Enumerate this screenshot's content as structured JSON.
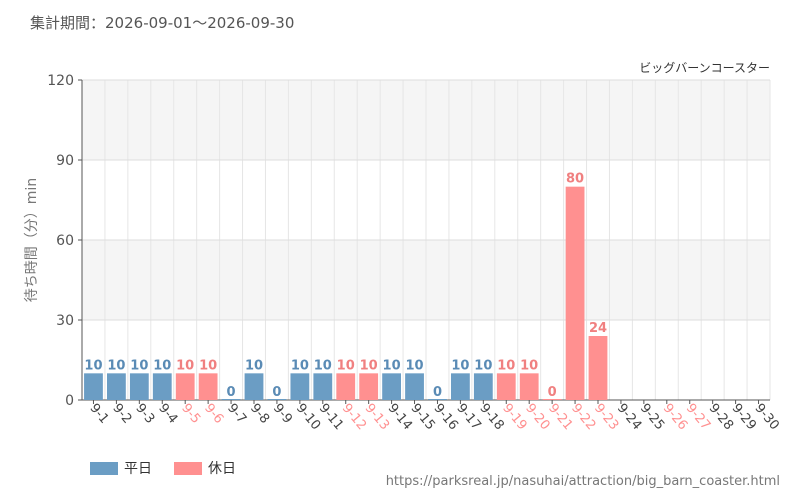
{
  "header": {
    "period_label": "集計期間：",
    "period_range": "2026-09-01～2026-09-30"
  },
  "footer": {
    "source_url": "https://parksreal.jp/nasuhai/attraction/big_barn_coaster.html"
  },
  "colors": {
    "weekday": "#6b9dc4",
    "holiday": "#ff9090",
    "weekday_text": "#5a8bb5",
    "holiday_text": "#f08080"
  },
  "chart_data": {
    "type": "bar",
    "subtitle": "ビッグバーンコースター",
    "ylabel": "待ち時間（分）min",
    "ylim": [
      0,
      120
    ],
    "yticks": [
      0,
      30,
      60,
      90,
      120
    ],
    "legend": {
      "position": "bottom-left",
      "entries": [
        {
          "key": "weekday",
          "label": "平日"
        },
        {
          "key": "holiday",
          "label": "休日"
        }
      ]
    },
    "categories": [
      "9-1",
      "9-2",
      "9-3",
      "9-4",
      "9-5",
      "9-6",
      "9-7",
      "9-8",
      "9-9",
      "9-10",
      "9-11",
      "9-12",
      "9-13",
      "9-14",
      "9-15",
      "9-16",
      "9-17",
      "9-18",
      "9-19",
      "9-20",
      "9-21",
      "9-22",
      "9-23",
      "9-24",
      "9-25",
      "9-26",
      "9-27",
      "9-28",
      "9-29",
      "9-30"
    ],
    "values": [
      10,
      10,
      10,
      10,
      10,
      10,
      0,
      10,
      0,
      10,
      10,
      10,
      10,
      10,
      10,
      0,
      10,
      10,
      10,
      10,
      0,
      80,
      24,
      null,
      null,
      null,
      null,
      null,
      null,
      null
    ],
    "day_type": [
      "weekday",
      "weekday",
      "weekday",
      "weekday",
      "holiday",
      "holiday",
      "weekday",
      "weekday",
      "weekday",
      "weekday",
      "weekday",
      "holiday",
      "holiday",
      "weekday",
      "weekday",
      "weekday",
      "weekday",
      "weekday",
      "holiday",
      "holiday",
      "holiday",
      "holiday",
      "holiday",
      "weekday",
      "weekday",
      "holiday",
      "holiday",
      "weekday",
      "weekday",
      "weekday"
    ]
  }
}
